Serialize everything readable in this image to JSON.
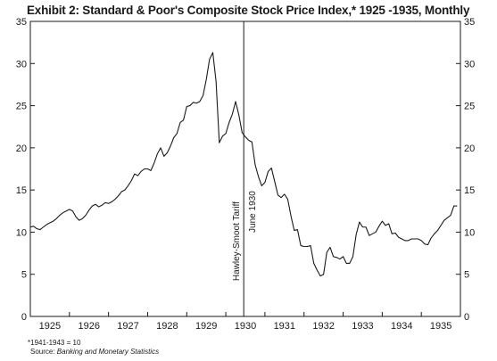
{
  "title": "Exhibit 2: Standard & Poor's Composite Stock Price Index,* 1925 -1935, Monthly",
  "footnote": {
    "base_note": "*1941-1943 = 10",
    "source_prefix": "Source: ",
    "source_title": "Banking and Monetary Statistics"
  },
  "chart_data": {
    "type": "line",
    "title": "Exhibit 2: Standard & Poor's Composite Stock Price Index,* 1925 -1935, Monthly",
    "xlabel": "",
    "ylabel": "",
    "x_tick_labels": [
      "1925",
      "1926",
      "1927",
      "1928",
      "1929",
      "1930",
      "1931",
      "1932",
      "1933",
      "1934",
      "1935"
    ],
    "xlim": [
      1925.0,
      1936.0
    ],
    "ylim": [
      0,
      35
    ],
    "y_ticks": [
      0,
      5,
      10,
      15,
      20,
      25,
      30,
      35
    ],
    "y_axis_labels_both_sides": true,
    "grid": false,
    "color": "#1a1a1a",
    "annotation": {
      "x": 1930.458,
      "line1": "Hawley-Smoot Tariff",
      "line2": "June 1930"
    },
    "series": [
      {
        "x": [
          1925.0,
          1925.083,
          1925.167,
          1925.25,
          1925.333,
          1925.417,
          1925.5,
          1925.583,
          1925.667,
          1925.75,
          1925.833,
          1925.917,
          1926.0,
          1926.083,
          1926.167,
          1926.25,
          1926.333,
          1926.417,
          1926.5,
          1926.583,
          1926.667,
          1926.75,
          1926.833,
          1926.917,
          1927.0,
          1927.083,
          1927.167,
          1927.25,
          1927.333,
          1927.417,
          1927.5,
          1927.583,
          1927.667,
          1927.75,
          1927.833,
          1927.917,
          1928.0,
          1928.083,
          1928.167,
          1928.25,
          1928.333,
          1928.417,
          1928.5,
          1928.583,
          1928.667,
          1928.75,
          1928.833,
          1928.917,
          1929.0,
          1929.083,
          1929.167,
          1929.25,
          1929.333,
          1929.417,
          1929.5,
          1929.583,
          1929.667,
          1929.75,
          1929.833,
          1929.917,
          1930.0,
          1930.083,
          1930.167,
          1930.25,
          1930.333,
          1930.417,
          1930.5,
          1930.583,
          1930.667,
          1930.75,
          1930.833,
          1930.917,
          1931.0,
          1931.083,
          1931.167,
          1931.25,
          1931.333,
          1931.417,
          1931.5,
          1931.583,
          1931.667,
          1931.75,
          1931.833,
          1931.917,
          1932.0,
          1932.083,
          1932.167,
          1932.25,
          1932.333,
          1932.417,
          1932.5,
          1932.583,
          1932.667,
          1932.75,
          1932.833,
          1932.917,
          1933.0,
          1933.083,
          1933.167,
          1933.25,
          1933.333,
          1933.417,
          1933.5,
          1933.583,
          1933.667,
          1933.75,
          1933.833,
          1933.917,
          1934.0,
          1934.083,
          1934.167,
          1934.25,
          1934.333,
          1934.417,
          1934.5,
          1934.583,
          1934.667,
          1934.75,
          1934.833,
          1934.917,
          1935.0,
          1935.083,
          1935.167,
          1935.25,
          1935.333,
          1935.417,
          1935.5,
          1935.583,
          1935.667,
          1935.75,
          1935.833,
          1935.917
        ],
        "y": [
          10.6,
          10.7,
          10.4,
          10.3,
          10.6,
          10.9,
          11.1,
          11.3,
          11.6,
          12.0,
          12.3,
          12.5,
          12.7,
          12.5,
          11.8,
          11.4,
          11.6,
          12.0,
          12.6,
          13.1,
          13.3,
          13.0,
          13.2,
          13.5,
          13.4,
          13.6,
          13.9,
          14.3,
          14.8,
          15.0,
          15.5,
          16.1,
          16.9,
          16.7,
          17.2,
          17.5,
          17.5,
          17.3,
          18.2,
          19.3,
          20.0,
          19.0,
          19.4,
          20.2,
          21.2,
          21.7,
          23.0,
          23.3,
          24.9,
          25.0,
          25.4,
          25.3,
          25.5,
          26.2,
          28.1,
          30.5,
          31.3,
          27.9,
          20.6,
          21.4,
          21.7,
          23.0,
          24.0,
          25.5,
          23.9,
          21.8,
          21.3,
          20.9,
          20.7,
          18.0,
          16.6,
          15.5,
          15.9,
          17.2,
          17.6,
          16.0,
          14.4,
          14.1,
          14.5,
          13.9,
          11.9,
          10.2,
          10.3,
          8.4,
          8.3,
          8.3,
          8.4,
          6.3,
          5.5,
          4.8,
          5.0,
          7.6,
          8.2,
          7.1,
          7.0,
          6.8,
          7.1,
          6.3,
          6.3,
          7.1,
          9.7,
          11.2,
          10.6,
          10.6,
          9.6,
          9.8,
          10.0,
          10.7,
          11.3,
          10.8,
          11.0,
          9.8,
          9.9,
          9.4,
          9.2,
          9.0,
          9.0,
          9.2,
          9.2,
          9.2,
          9.0,
          8.6,
          8.5,
          9.3,
          9.8,
          10.2,
          10.8,
          11.4,
          11.7,
          12.0,
          13.1,
          13.1
        ]
      }
    ]
  }
}
